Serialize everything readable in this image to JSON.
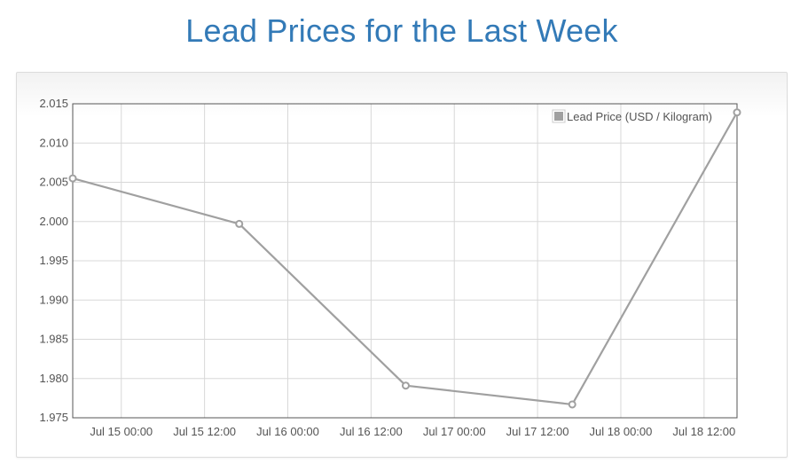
{
  "page": {
    "title": "Lead Prices for the Last Week"
  },
  "colors": {
    "title": "#337ab7",
    "series_line": "#a0a0a0",
    "grid": "#d8d8d8",
    "axis_frame": "#545454",
    "tick_text": "#545454"
  },
  "chart_data": {
    "type": "line",
    "title": "",
    "xlabel": "",
    "ylabel": "",
    "grid": true,
    "legend_position": "top-right",
    "x_ticks": [
      "Jul 15 00:00",
      "Jul 15 12:00",
      "Jul 16 00:00",
      "Jul 16 12:00",
      "Jul 17 00:00",
      "Jul 17 12:00",
      "Jul 18 00:00",
      "Jul 18 12:00"
    ],
    "y_ticks": [
      "1.975",
      "1.980",
      "1.985",
      "1.990",
      "1.995",
      "2.000",
      "2.005",
      "2.010",
      "2.015"
    ],
    "xlim": [
      "Jul 14 17:00",
      "Jul 18 16:45"
    ],
    "ylim": [
      1.975,
      2.015
    ],
    "series": [
      {
        "name": "Lead Price (USD / Kilogram)",
        "x": [
          "Jul 14 17:00",
          "Jul 15 17:00",
          "Jul 16 17:00",
          "Jul 17 17:00",
          "Jul 18 16:45"
        ],
        "y": [
          2.0055,
          1.9997,
          1.9791,
          1.9767,
          2.0139
        ]
      }
    ]
  }
}
